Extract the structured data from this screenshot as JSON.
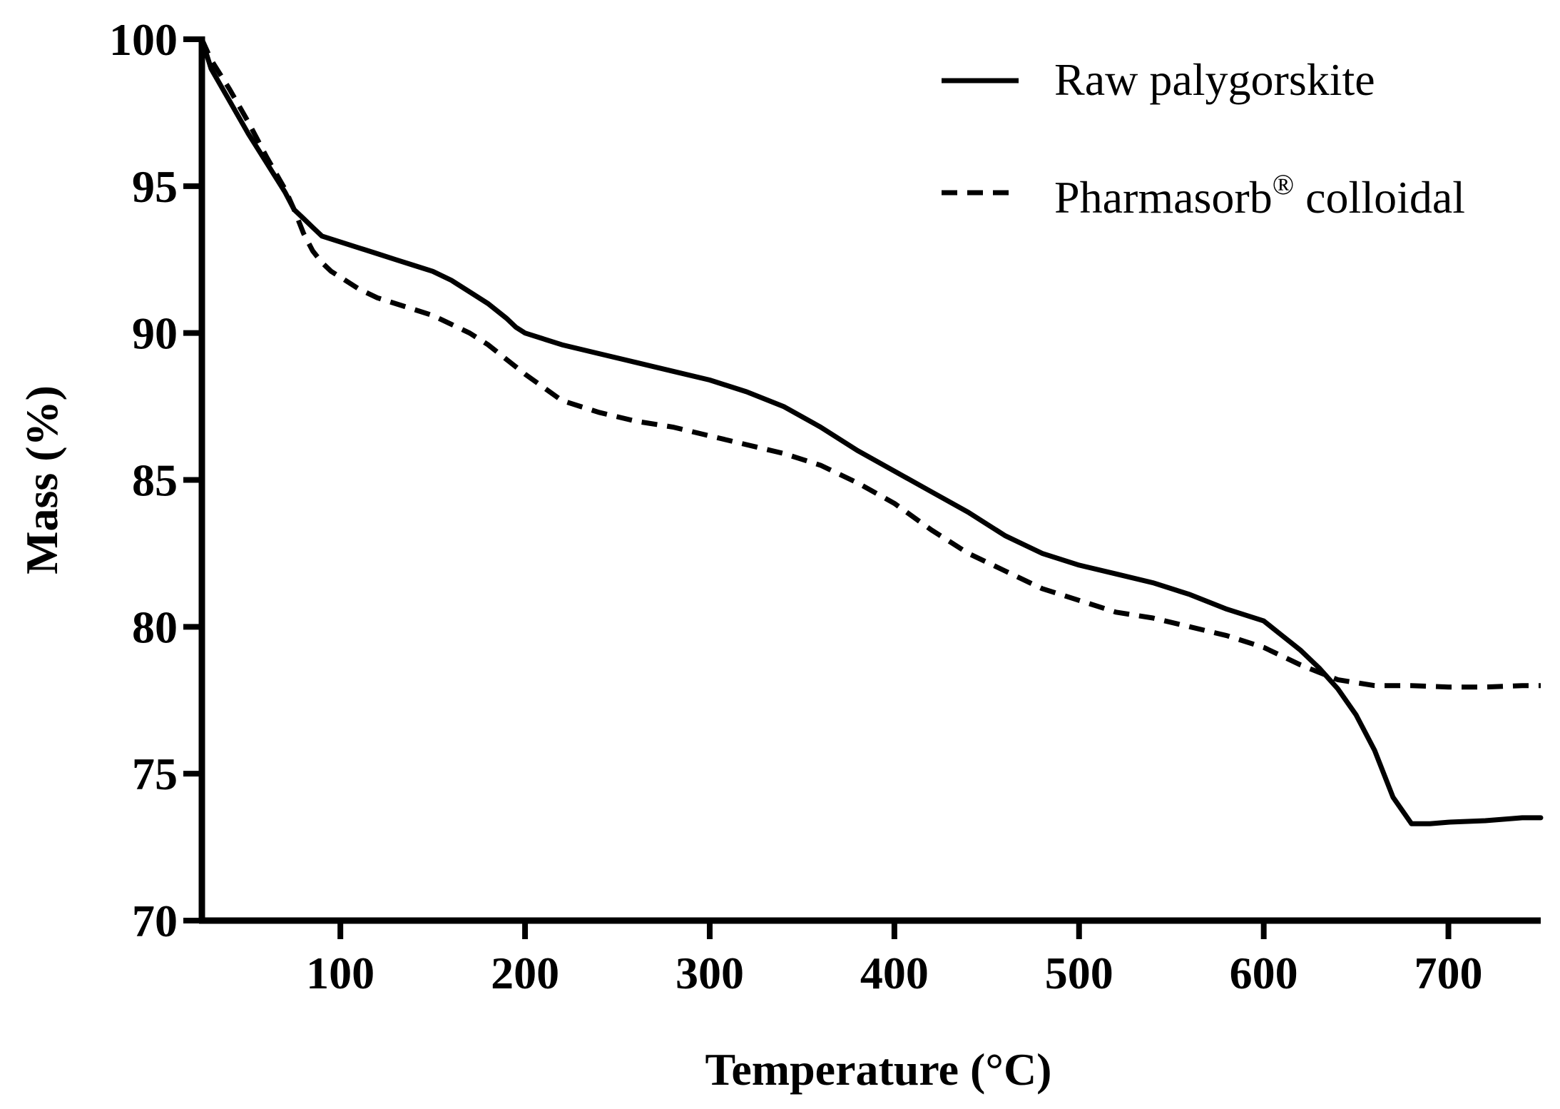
{
  "chart_data": {
    "type": "line",
    "xlabel": "Temperature (°C)",
    "ylabel": "Mass (%)",
    "xlim": [
      25,
      750
    ],
    "ylim": [
      70,
      100
    ],
    "x_ticks": [
      100,
      200,
      300,
      400,
      500,
      600,
      700
    ],
    "y_ticks": [
      70,
      75,
      80,
      85,
      90,
      95,
      100
    ],
    "x_tick_labels": [
      "100",
      "200",
      "300",
      "400",
      "500",
      "600",
      "700"
    ],
    "y_tick_labels": [
      "70",
      "75",
      "80",
      "85",
      "90",
      "95",
      "100"
    ],
    "grid": false,
    "legend_position": "top-right",
    "series": [
      {
        "name": "Raw palygorskite",
        "style": "solid",
        "color": "#000000",
        "x": [
          25,
          30,
          40,
          50,
          60,
          70,
          75,
          80,
          85,
          90,
          95,
          100,
          110,
          120,
          130,
          140,
          150,
          160,
          170,
          180,
          190,
          195,
          200,
          220,
          240,
          260,
          280,
          300,
          320,
          340,
          360,
          380,
          400,
          420,
          440,
          460,
          480,
          500,
          520,
          540,
          560,
          580,
          600,
          610,
          620,
          630,
          640,
          650,
          660,
          670,
          680,
          690,
          700,
          720,
          740,
          750
        ],
        "values": [
          100,
          99.0,
          97.9,
          96.8,
          95.8,
          94.8,
          94.2,
          93.9,
          93.6,
          93.3,
          93.2,
          93.1,
          92.9,
          92.7,
          92.5,
          92.3,
          92.1,
          91.8,
          91.4,
          91.0,
          90.5,
          90.2,
          90.0,
          89.6,
          89.3,
          89.0,
          88.7,
          88.4,
          88.0,
          87.5,
          86.8,
          86.0,
          85.3,
          84.6,
          83.9,
          83.1,
          82.5,
          82.1,
          81.8,
          81.5,
          81.1,
          80.6,
          80.2,
          79.7,
          79.2,
          78.6,
          77.9,
          77.0,
          75.8,
          74.2,
          73.3,
          73.3,
          73.35,
          73.4,
          73.5,
          73.5
        ]
      },
      {
        "name": "Pharmasorb® colloidal",
        "style": "dashed",
        "color": "#000000",
        "x": [
          25,
          30,
          40,
          50,
          60,
          70,
          75,
          80,
          85,
          90,
          95,
          100,
          110,
          120,
          130,
          140,
          150,
          160,
          170,
          180,
          190,
          200,
          220,
          240,
          260,
          280,
          300,
          320,
          340,
          360,
          380,
          400,
          420,
          440,
          460,
          480,
          500,
          520,
          540,
          560,
          580,
          600,
          620,
          640,
          650,
          660,
          680,
          700,
          720,
          740,
          750
        ],
        "values": [
          100,
          99.3,
          98.3,
          97.2,
          96.0,
          94.9,
          94.2,
          93.4,
          92.8,
          92.4,
          92.1,
          91.9,
          91.5,
          91.2,
          91.0,
          90.8,
          90.6,
          90.3,
          90.0,
          89.6,
          89.1,
          88.6,
          87.7,
          87.3,
          87.0,
          86.8,
          86.5,
          86.2,
          85.9,
          85.5,
          84.9,
          84.2,
          83.3,
          82.5,
          81.9,
          81.3,
          80.9,
          80.5,
          80.3,
          80.0,
          79.7,
          79.3,
          78.7,
          78.2,
          78.1,
          78.0,
          78.0,
          77.95,
          77.95,
          78.0,
          78.0
        ]
      }
    ]
  }
}
